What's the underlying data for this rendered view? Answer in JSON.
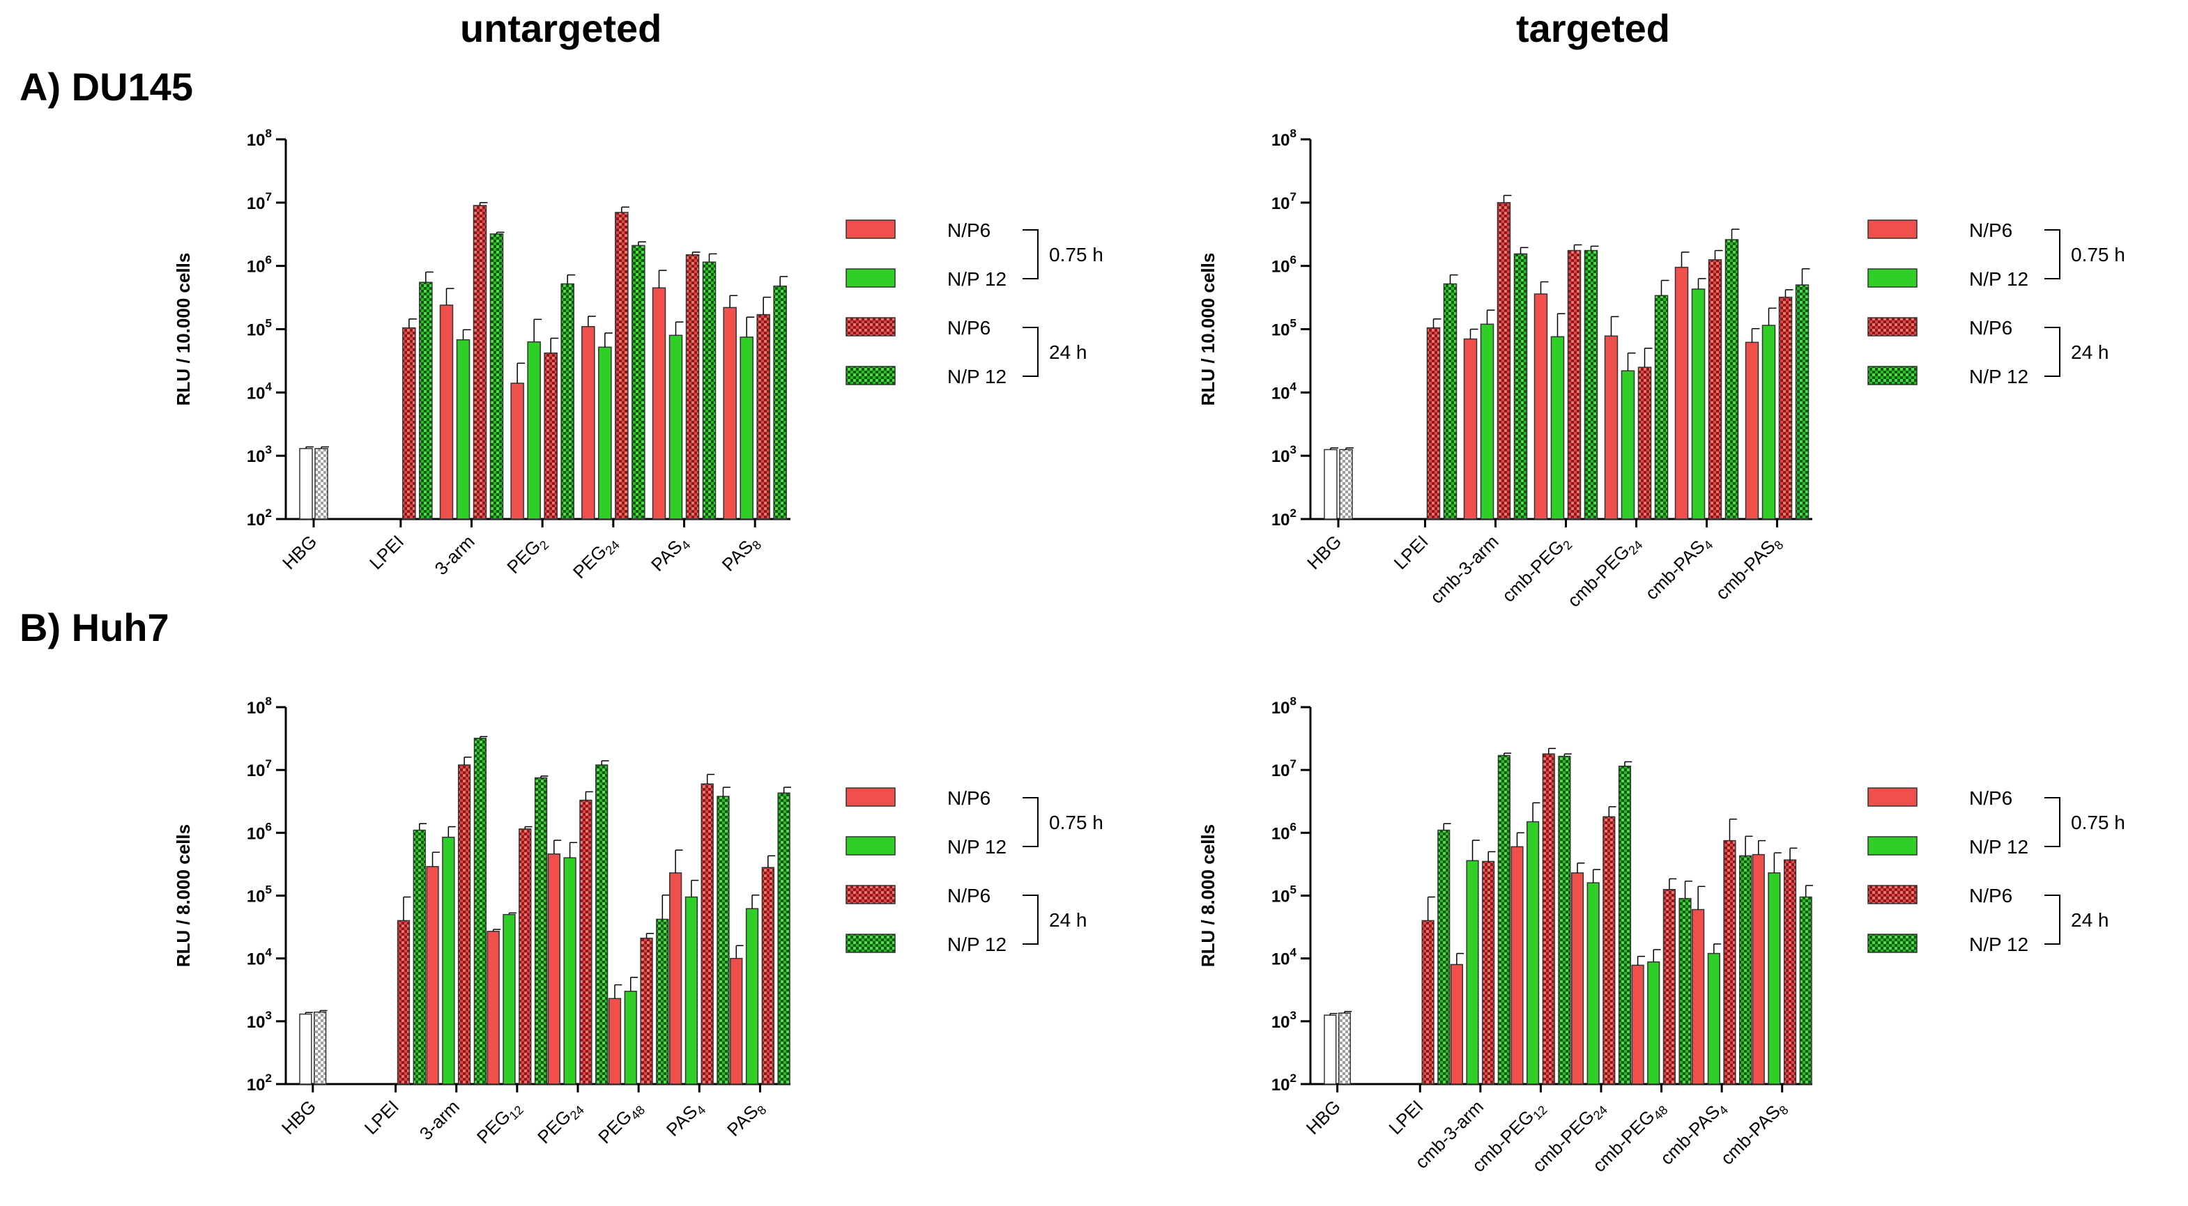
{
  "column_titles": {
    "left": "untargeted",
    "right": "targeted"
  },
  "sections": [
    {
      "label": "A) DU145"
    },
    {
      "label": "B) Huh7"
    }
  ],
  "colors": {
    "np6": "#f0504b",
    "np12": "#2fcf28",
    "edge": "#333333",
    "hbg_fill": "#ffffff",
    "hbg_pattern": "#a0a0a0"
  },
  "legend": {
    "entries": [
      {
        "label": "N/P6",
        "group": "0.75 h"
      },
      {
        "label": "N/P 12",
        "group": "0.75 h"
      },
      {
        "label": "N/P6",
        "group": "24 h"
      },
      {
        "label": "N/P 12",
        "group": "24 h"
      }
    ],
    "brackets": [
      "0.75 h",
      "24 h"
    ]
  },
  "chart_data": [
    {
      "type": "bar",
      "scale": "log",
      "section": "A) DU145",
      "panel": "untargeted",
      "ylabel": "RLU / 10.000 cells",
      "ylim": [
        100,
        100000000
      ],
      "ytick_labels": [
        [
          "10",
          "2"
        ],
        [
          "10",
          "3"
        ],
        [
          "10",
          "4"
        ],
        [
          "10",
          "5"
        ],
        [
          "10",
          "6"
        ],
        [
          "10",
          "7"
        ],
        [
          "10",
          "8"
        ]
      ],
      "hbg": {
        "label": "HBG",
        "values": [
          1300,
          1300
        ],
        "errors": [
          80,
          80
        ]
      },
      "categories": [
        [
          "LPEI",
          ""
        ],
        [
          "3-arm",
          ""
        ],
        [
          "PEG",
          "2"
        ],
        [
          "PEG",
          "24"
        ],
        [
          "PAS",
          "4"
        ],
        [
          "PAS",
          "8"
        ]
      ],
      "series": [
        {
          "name": "N/P6 0.75 h",
          "values": [
            null,
            240000,
            14000,
            110000,
            450000,
            220000
          ],
          "errors": [
            null,
            200000,
            15000,
            50000,
            400000,
            120000
          ]
        },
        {
          "name": "N/P 12 0.75 h",
          "values": [
            null,
            68000,
            63000,
            52000,
            80000,
            75000
          ],
          "errors": [
            null,
            30000,
            80000,
            35000,
            50000,
            80000
          ]
        },
        {
          "name": "N/P6 24 h",
          "values": [
            105000,
            9000000,
            42000,
            7000000,
            1500000,
            170000
          ],
          "errors": [
            40000,
            1000000,
            30000,
            1500000,
            150000,
            150000
          ]
        },
        {
          "name": "N/P 12 24 h",
          "values": [
            550000,
            3200000,
            520000,
            2100000,
            1150000,
            480000
          ],
          "errors": [
            250000,
            200000,
            200000,
            300000,
            400000,
            200000
          ]
        }
      ]
    },
    {
      "type": "bar",
      "scale": "log",
      "section": "A) DU145",
      "panel": "targeted",
      "ylabel": "RLU / 10.000 cells",
      "ylim": [
        100,
        100000000
      ],
      "ytick_labels": [
        [
          "10",
          "2"
        ],
        [
          "10",
          "3"
        ],
        [
          "10",
          "4"
        ],
        [
          "10",
          "5"
        ],
        [
          "10",
          "6"
        ],
        [
          "10",
          "7"
        ],
        [
          "10",
          "8"
        ]
      ],
      "hbg": {
        "label": "HBG",
        "values": [
          1250,
          1250
        ],
        "errors": [
          80,
          80
        ]
      },
      "categories": [
        [
          "LPEI",
          ""
        ],
        [
          "cmb-3-arm",
          ""
        ],
        [
          "cmb-PEG",
          "2"
        ],
        [
          "cmb-PEG",
          "24"
        ],
        [
          "cmb-PAS",
          "4"
        ],
        [
          "cmb-PAS",
          "8"
        ]
      ],
      "series": [
        {
          "name": "N/P6 0.75 h",
          "values": [
            null,
            70000,
            360000,
            78000,
            950000,
            62000
          ],
          "errors": [
            null,
            30000,
            200000,
            80000,
            700000,
            40000
          ]
        },
        {
          "name": "N/P 12 0.75 h",
          "values": [
            null,
            120000,
            76000,
            22000,
            430000,
            115000
          ],
          "errors": [
            null,
            80000,
            100000,
            20000,
            200000,
            100000
          ]
        },
        {
          "name": "N/P6 24 h",
          "values": [
            105000,
            10000000,
            1750000,
            25000,
            1250000,
            320000
          ],
          "errors": [
            40000,
            3000000,
            400000,
            25000,
            500000,
            100000
          ]
        },
        {
          "name": "N/P 12 24 h",
          "values": [
            520000,
            1550000,
            1750000,
            340000,
            2600000,
            500000
          ],
          "errors": [
            200000,
            400000,
            300000,
            250000,
            1200000,
            400000
          ]
        }
      ]
    },
    {
      "type": "bar",
      "scale": "log",
      "section": "B) Huh7",
      "panel": "untargeted",
      "ylabel": "RLU / 8.000 cells",
      "ylim": [
        100,
        100000000
      ],
      "ytick_labels": [
        [
          "10",
          "2"
        ],
        [
          "10",
          "3"
        ],
        [
          "10",
          "4"
        ],
        [
          "10",
          "5"
        ],
        [
          "10",
          "6"
        ],
        [
          "10",
          "7"
        ],
        [
          "10",
          "8"
        ]
      ],
      "hbg": {
        "label": "HBG",
        "values": [
          1300,
          1400
        ],
        "errors": [
          80,
          80
        ]
      },
      "categories": [
        [
          "LPEI",
          ""
        ],
        [
          "3-arm",
          ""
        ],
        [
          "PEG",
          "12"
        ],
        [
          "PEG",
          "24"
        ],
        [
          "PEG",
          "48"
        ],
        [
          "PAS",
          "4"
        ],
        [
          "PAS",
          "8"
        ]
      ],
      "series": [
        {
          "name": "N/P6 0.75 h",
          "values": [
            null,
            290000,
            27000,
            460000,
            2300,
            230000,
            10000
          ],
          "errors": [
            null,
            200000,
            2000,
            300000,
            1500,
            300000,
            6000
          ]
        },
        {
          "name": "N/P 12 0.75 h",
          "values": [
            null,
            850000,
            50000,
            400000,
            3000,
            95000,
            62000
          ],
          "errors": [
            null,
            400000,
            3000,
            300000,
            2000,
            80000,
            40000
          ]
        },
        {
          "name": "N/P6 24 h",
          "values": [
            40000,
            12000000,
            1150000,
            3300000,
            21000,
            6000000,
            280000
          ],
          "errors": [
            55000,
            4000000,
            100000,
            1200000,
            4000,
            2500000,
            150000
          ]
        },
        {
          "name": "N/P 12 24 h",
          "values": [
            1100000,
            32000000,
            7500000,
            12000000,
            42000,
            3800000,
            4300000
          ],
          "errors": [
            300000,
            2000000,
            500000,
            2000000,
            60000,
            1500000,
            1000000
          ]
        }
      ]
    },
    {
      "type": "bar",
      "scale": "log",
      "section": "B) Huh7",
      "panel": "targeted",
      "ylabel": "RLU / 8.000 cells",
      "ylim": [
        100,
        100000000
      ],
      "ytick_labels": [
        [
          "10",
          "2"
        ],
        [
          "10",
          "3"
        ],
        [
          "10",
          "4"
        ],
        [
          "10",
          "5"
        ],
        [
          "10",
          "6"
        ],
        [
          "10",
          "7"
        ],
        [
          "10",
          "8"
        ]
      ],
      "hbg": {
        "label": "HBG",
        "values": [
          1250,
          1350
        ],
        "errors": [
          80,
          80
        ]
      },
      "categories": [
        [
          "LPEI",
          ""
        ],
        [
          "cmb-3-arm",
          ""
        ],
        [
          "cmb-PEG",
          "12"
        ],
        [
          "cmb-PEG",
          "24"
        ],
        [
          "cmb-PEG",
          "48"
        ],
        [
          "cmb-PAS",
          "4"
        ],
        [
          "cmb-PAS",
          "8"
        ]
      ],
      "series": [
        {
          "name": "N/P6 0.75 h",
          "values": [
            null,
            8000,
            600000,
            230000,
            7800,
            60000,
            450000
          ],
          "errors": [
            null,
            4000,
            400000,
            100000,
            3000,
            80000,
            300000
          ]
        },
        {
          "name": "N/P 12 0.75 h",
          "values": [
            null,
            360000,
            1500000,
            160000,
            8800,
            12000,
            230000
          ],
          "errors": [
            null,
            400000,
            1500000,
            100000,
            5000,
            5000,
            250000
          ]
        },
        {
          "name": "N/P6 24 h",
          "values": [
            40000,
            350000,
            18000000,
            1800000,
            125000,
            750000,
            370000
          ],
          "errors": [
            55000,
            150000,
            4000000,
            800000,
            60000,
            900000,
            200000
          ]
        },
        {
          "name": "N/P 12 24 h",
          "values": [
            1100000,
            17000000,
            16500000,
            11500000,
            90000,
            430000,
            95000
          ],
          "errors": [
            300000,
            1500000,
            1500000,
            2000000,
            80000,
            450000,
            50000
          ]
        }
      ]
    }
  ]
}
